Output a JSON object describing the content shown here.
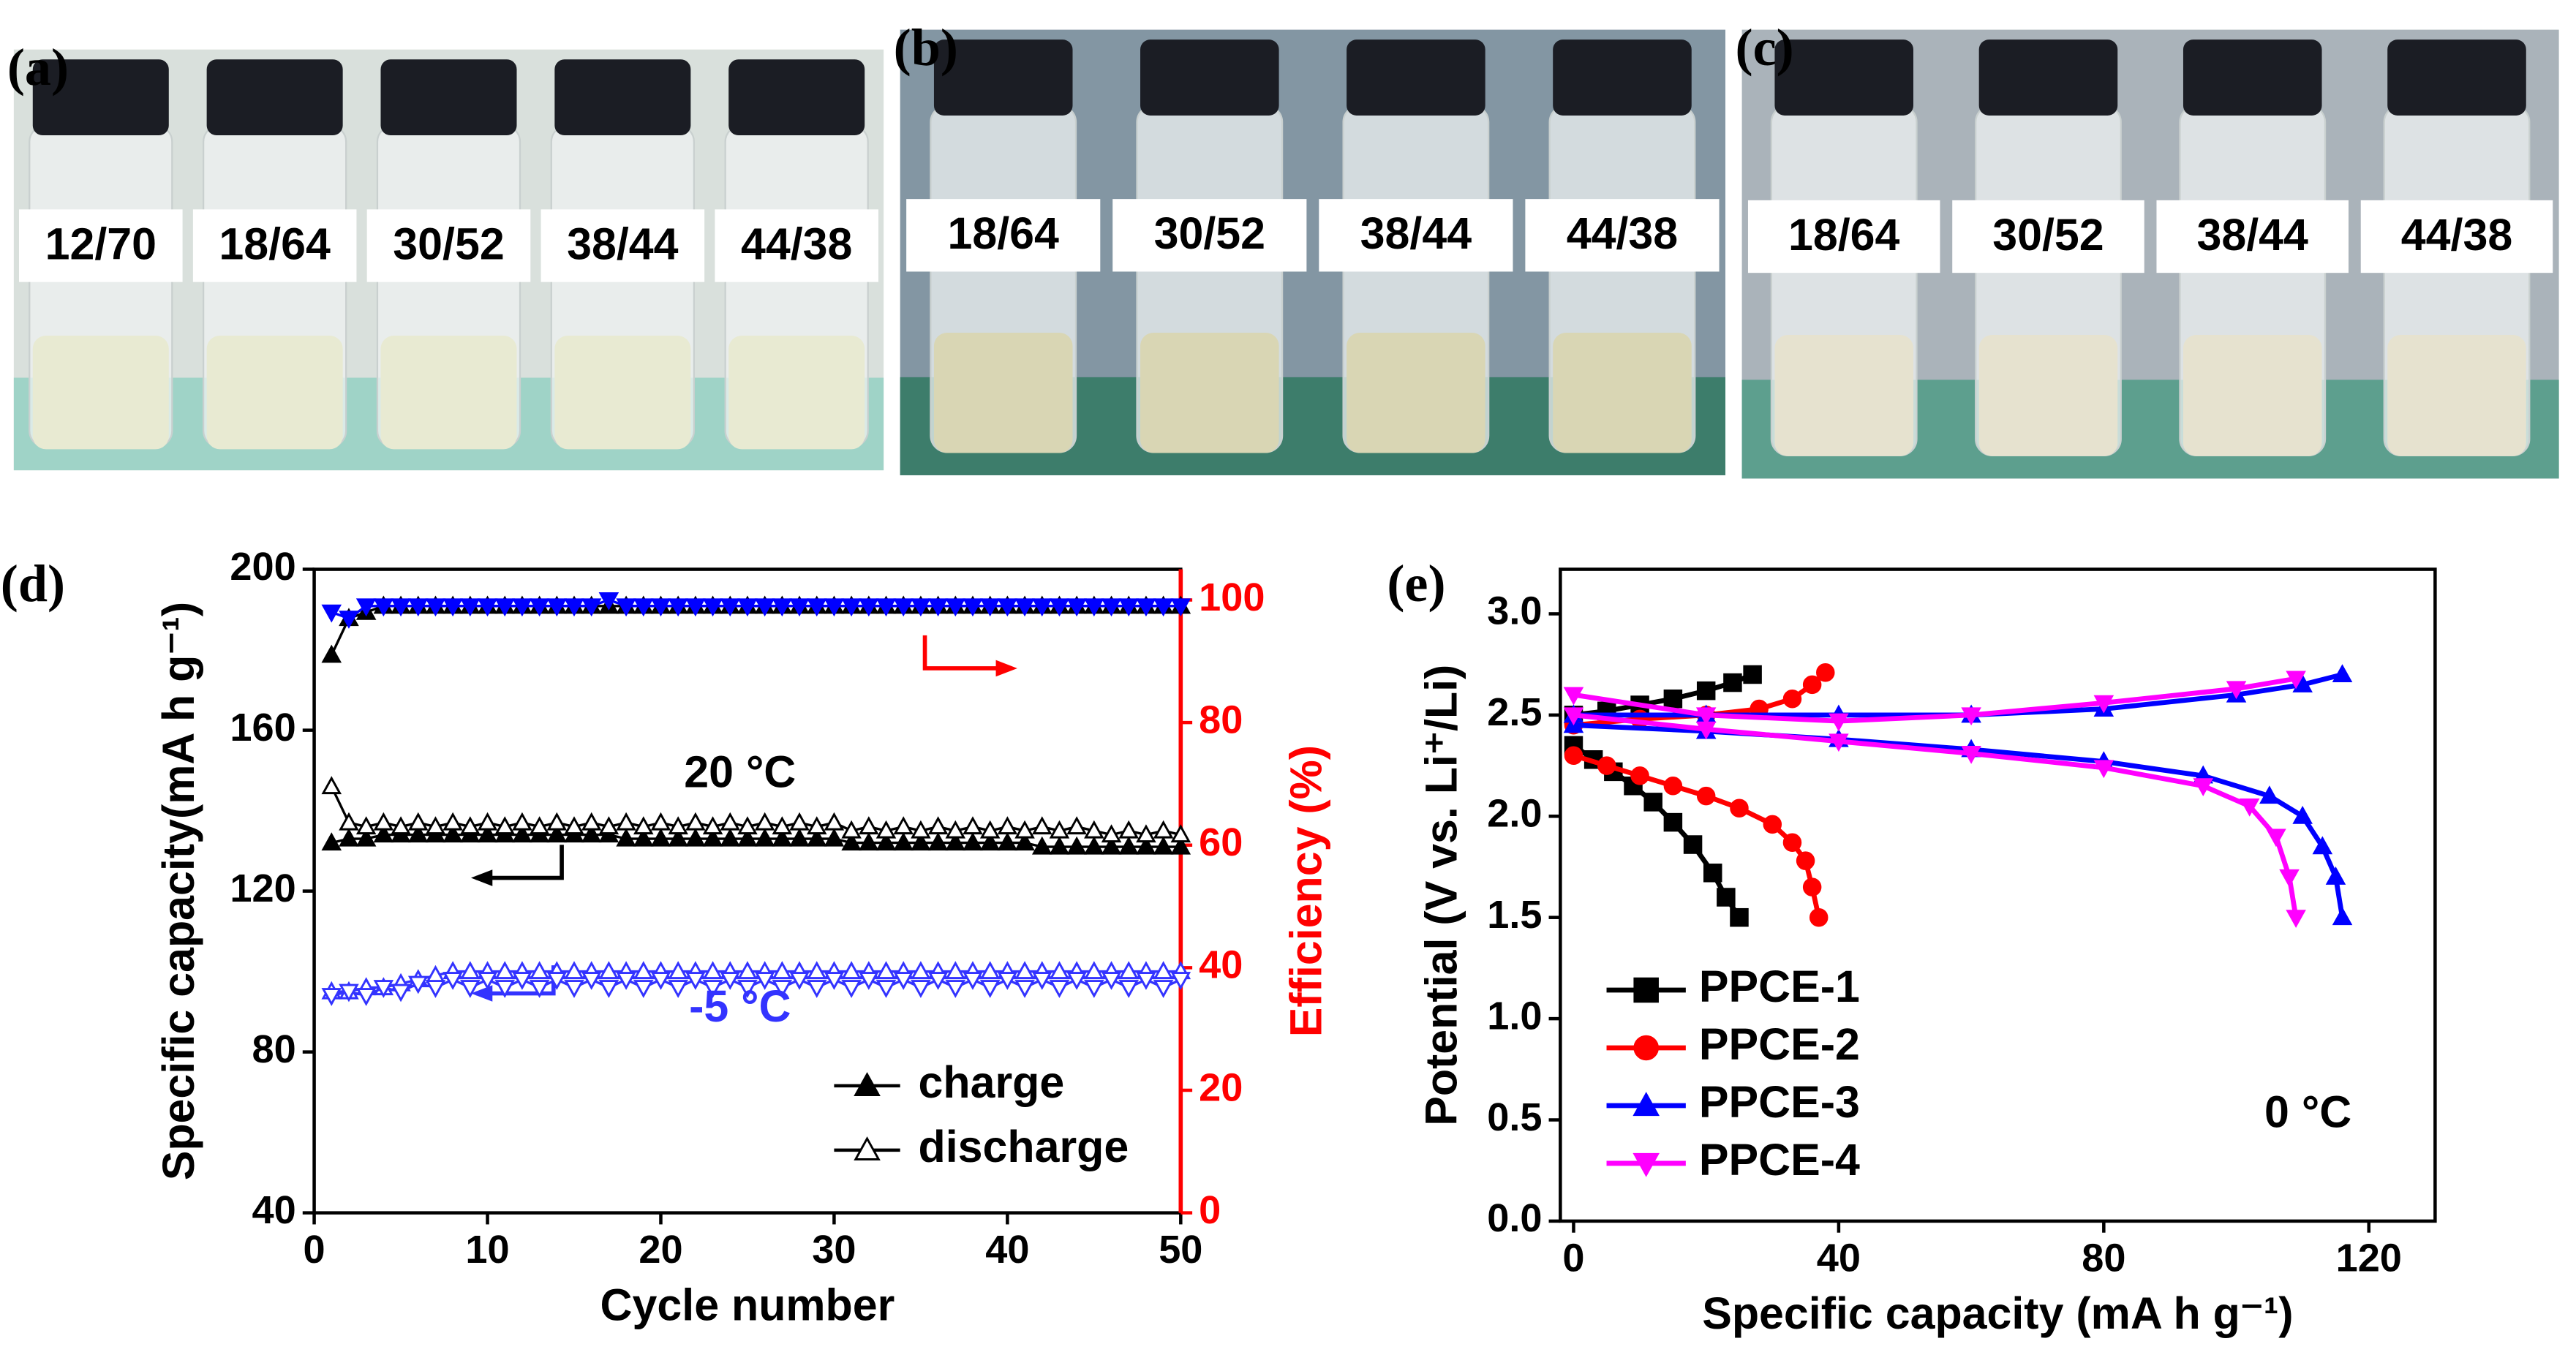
{
  "panels": [
    {
      "label": "(a)",
      "bottles": [
        "12/70",
        "18/64",
        "30/52",
        "38/44",
        "44/38"
      ]
    },
    {
      "label": "(b)",
      "bottles": [
        "18/64",
        "30/52",
        "38/44",
        "44/38"
      ]
    },
    {
      "label": "(c)",
      "bottles": [
        "18/64",
        "30/52",
        "38/44",
        "44/38"
      ]
    }
  ],
  "chart_data": [
    {
      "type": "scatter",
      "label": "(d)",
      "xlabel": "Cycle number",
      "ylabel": "Specific capacity(mA h g⁻¹)",
      "y2label": "Efficiency (%)",
      "y2color": "#ff0000",
      "xlim": [
        0,
        50
      ],
      "xticks": [
        0,
        10,
        20,
        30,
        40,
        50
      ],
      "ylim": [
        40,
        200
      ],
      "yticks": [
        40,
        80,
        120,
        160,
        200
      ],
      "y2lim": [
        0,
        105
      ],
      "y2ticks": [
        0,
        20,
        40,
        60,
        80,
        100
      ],
      "x": [
        1,
        2,
        3,
        4,
        5,
        6,
        7,
        8,
        9,
        10,
        11,
        12,
        13,
        14,
        15,
        16,
        17,
        18,
        19,
        20,
        21,
        22,
        23,
        24,
        25,
        26,
        27,
        28,
        29,
        30,
        31,
        32,
        33,
        34,
        35,
        36,
        37,
        38,
        39,
        40,
        41,
        42,
        43,
        44,
        45,
        46,
        47,
        48,
        49,
        50
      ],
      "legend": [
        {
          "name": "charge",
          "marker": "up",
          "filled": true
        },
        {
          "name": "discharge",
          "marker": "up",
          "filled": false
        }
      ],
      "series": [
        {
          "color": "#000000",
          "marker": "up",
          "filled": true,
          "values": [
            132,
            133,
            133,
            134,
            134,
            134,
            134,
            134,
            134,
            134,
            134,
            134,
            134,
            134,
            134,
            134,
            134,
            133,
            133,
            133,
            133,
            133,
            133,
            133,
            133,
            133,
            133,
            133,
            133,
            133,
            132,
            132,
            132,
            132,
            132,
            132,
            132,
            132,
            132,
            132,
            132,
            131,
            131,
            131,
            131,
            131,
            131,
            131,
            131,
            131
          ]
        },
        {
          "color": "#000000",
          "marker": "up",
          "filled": false,
          "values": [
            146,
            137,
            136,
            137,
            136,
            137,
            136,
            137,
            136,
            137,
            136,
            137,
            136,
            137,
            136,
            137,
            136,
            137,
            136,
            137,
            136,
            137,
            136,
            137,
            136,
            137,
            136,
            137,
            136,
            137,
            135,
            136,
            135,
            136,
            135,
            136,
            135,
            136,
            135,
            136,
            135,
            136,
            135,
            136,
            135,
            134,
            135,
            134,
            135,
            134
          ]
        },
        {
          "color": "#3333ff",
          "marker": "up",
          "filled": false,
          "values": [
            95,
            95,
            96,
            96,
            97,
            98,
            99,
            100,
            100,
            100,
            100,
            100,
            100,
            100,
            100,
            100,
            100,
            100,
            100,
            100,
            100,
            100,
            100,
            100,
            100,
            100,
            100,
            100,
            100,
            100,
            100,
            100,
            100,
            100,
            100,
            100,
            100,
            100,
            100,
            100,
            100,
            100,
            100,
            100,
            100,
            100,
            100,
            100,
            100,
            100
          ]
        },
        {
          "color": "#3333ff",
          "marker": "down",
          "filled": false,
          "values": [
            94,
            95,
            94,
            96,
            95,
            97,
            96,
            98,
            96,
            98,
            96,
            98,
            96,
            98,
            96,
            98,
            96,
            98,
            96,
            98,
            96,
            98,
            96,
            98,
            96,
            98,
            96,
            98,
            96,
            98,
            96,
            98,
            96,
            98,
            96,
            98,
            96,
            98,
            96,
            98,
            96,
            98,
            96,
            98,
            96,
            98,
            96,
            98,
            96,
            98
          ]
        },
        {
          "color": "#000000",
          "marker": "up",
          "filled": true,
          "axis": "y2",
          "values": [
            91,
            97,
            98,
            99,
            99,
            99,
            99,
            99,
            99,
            99,
            99,
            99,
            99,
            99,
            99,
            99,
            99,
            99,
            99,
            99,
            99,
            99,
            99,
            99,
            99,
            99,
            99,
            99,
            99,
            99,
            99,
            99,
            99,
            99,
            99,
            99,
            99,
            99,
            99,
            99,
            99,
            99,
            99,
            99,
            99,
            99,
            99,
            99,
            99,
            99
          ]
        },
        {
          "color": "#0000ff",
          "marker": "down",
          "filled": true,
          "axis": "y2",
          "values": [
            98,
            97,
            99,
            99,
            99,
            99,
            99,
            99,
            99,
            99,
            99,
            99,
            99,
            99,
            99,
            99,
            100,
            99,
            99,
            99,
            99,
            99,
            99,
            99,
            99,
            99,
            99,
            99,
            99,
            99,
            99,
            99,
            99,
            99,
            99,
            99,
            99,
            99,
            99,
            99,
            99,
            99,
            99,
            99,
            99,
            99,
            99,
            99,
            99,
            99
          ]
        }
      ],
      "annotations": [
        {
          "text": "20 °C",
          "color": "#000000"
        },
        {
          "text": "-5 °C",
          "color": "#3333ff"
        }
      ]
    },
    {
      "type": "line",
      "label": "(e)",
      "xlabel": "Specific capacity (mA h g⁻¹)",
      "ylabel": "Potential (V vs. Li⁺/Li)",
      "xlim": [
        -2,
        130
      ],
      "xticks": [
        0,
        40,
        80,
        120
      ],
      "ylim": [
        0,
        3.22
      ],
      "yticks": [
        {
          "value": 0,
          "label": "0.0"
        },
        0.5,
        {
          "value": 1,
          "label": "1.0"
        },
        1.5,
        {
          "value": 2,
          "label": "2.0"
        },
        2.5,
        {
          "value": 3,
          "label": "3.0"
        }
      ],
      "legend_loc": "lower left",
      "series": [
        {
          "name": "PPCE-1",
          "color": "#000000",
          "marker": "square",
          "x": [
            0,
            3,
            6,
            9,
            12,
            15,
            18,
            21,
            23,
            25,
            null,
            0,
            5,
            10,
            15,
            20,
            24,
            27
          ],
          "values": [
            2.35,
            2.28,
            2.22,
            2.15,
            2.07,
            1.97,
            1.86,
            1.72,
            1.6,
            1.5,
            null,
            2.5,
            2.52,
            2.55,
            2.58,
            2.62,
            2.66,
            2.7
          ]
        },
        {
          "name": "PPCE-2",
          "color": "#ff0000",
          "marker": "circle",
          "x": [
            0,
            5,
            10,
            15,
            20,
            25,
            30,
            33,
            35,
            36,
            37,
            null,
            0,
            10,
            20,
            28,
            33,
            36,
            38
          ],
          "values": [
            2.3,
            2.25,
            2.2,
            2.15,
            2.1,
            2.04,
            1.96,
            1.87,
            1.78,
            1.65,
            1.5,
            null,
            2.45,
            2.48,
            2.5,
            2.53,
            2.58,
            2.65,
            2.71
          ]
        },
        {
          "name": "PPCE-3",
          "color": "#0000ff",
          "marker": "up",
          "x": [
            0,
            20,
            40,
            60,
            80,
            95,
            105,
            110,
            113,
            115,
            116,
            null,
            0,
            20,
            40,
            60,
            80,
            100,
            110,
            116
          ],
          "values": [
            2.45,
            2.42,
            2.38,
            2.33,
            2.27,
            2.2,
            2.1,
            2.0,
            1.85,
            1.7,
            1.5,
            null,
            2.5,
            2.5,
            2.5,
            2.5,
            2.53,
            2.6,
            2.65,
            2.7
          ]
        },
        {
          "name": "PPCE-4",
          "color": "#ff00ff",
          "marker": "down",
          "x": [
            0,
            20,
            40,
            60,
            80,
            95,
            102,
            106,
            108,
            109,
            null,
            0,
            20,
            40,
            60,
            80,
            100,
            109
          ],
          "values": [
            2.5,
            2.43,
            2.37,
            2.31,
            2.24,
            2.15,
            2.05,
            1.9,
            1.7,
            1.5,
            null,
            2.6,
            2.5,
            2.47,
            2.5,
            2.56,
            2.63,
            2.68
          ]
        }
      ],
      "annotations": [
        {
          "text": "0 °C",
          "color": "#000000"
        }
      ]
    }
  ]
}
